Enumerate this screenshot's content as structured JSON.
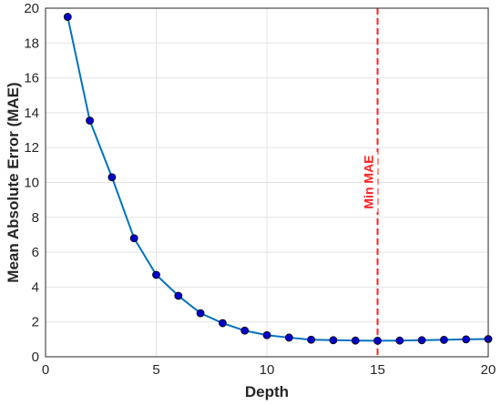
{
  "chart_data": {
    "type": "line",
    "xlabel": "Depth",
    "ylabel": "Mean Absolute Error (MAE)",
    "xlim": [
      0,
      20
    ],
    "ylim": [
      0,
      20
    ],
    "xticks": [
      0,
      5,
      10,
      15,
      20
    ],
    "yticks": [
      0,
      2,
      4,
      6,
      8,
      10,
      12,
      14,
      16,
      18,
      20
    ],
    "grid": true,
    "series": [
      {
        "x": [
          1,
          2,
          3,
          4,
          5,
          6,
          7,
          8,
          9,
          10,
          11,
          12,
          13,
          14,
          15,
          16,
          17,
          18,
          19,
          20
        ],
        "y": [
          19.5,
          13.55,
          10.3,
          6.8,
          4.7,
          3.5,
          2.5,
          1.93,
          1.5,
          1.24,
          1.1,
          0.98,
          0.95,
          0.93,
          0.92,
          0.93,
          0.95,
          0.97,
          1.0,
          1.02
        ],
        "color": "#0072BD",
        "marker_color": "#0000cc"
      }
    ],
    "annotations": [
      {
        "type": "vline",
        "x": 15,
        "label": "Min MAE",
        "color": "#ff2020"
      }
    ]
  }
}
